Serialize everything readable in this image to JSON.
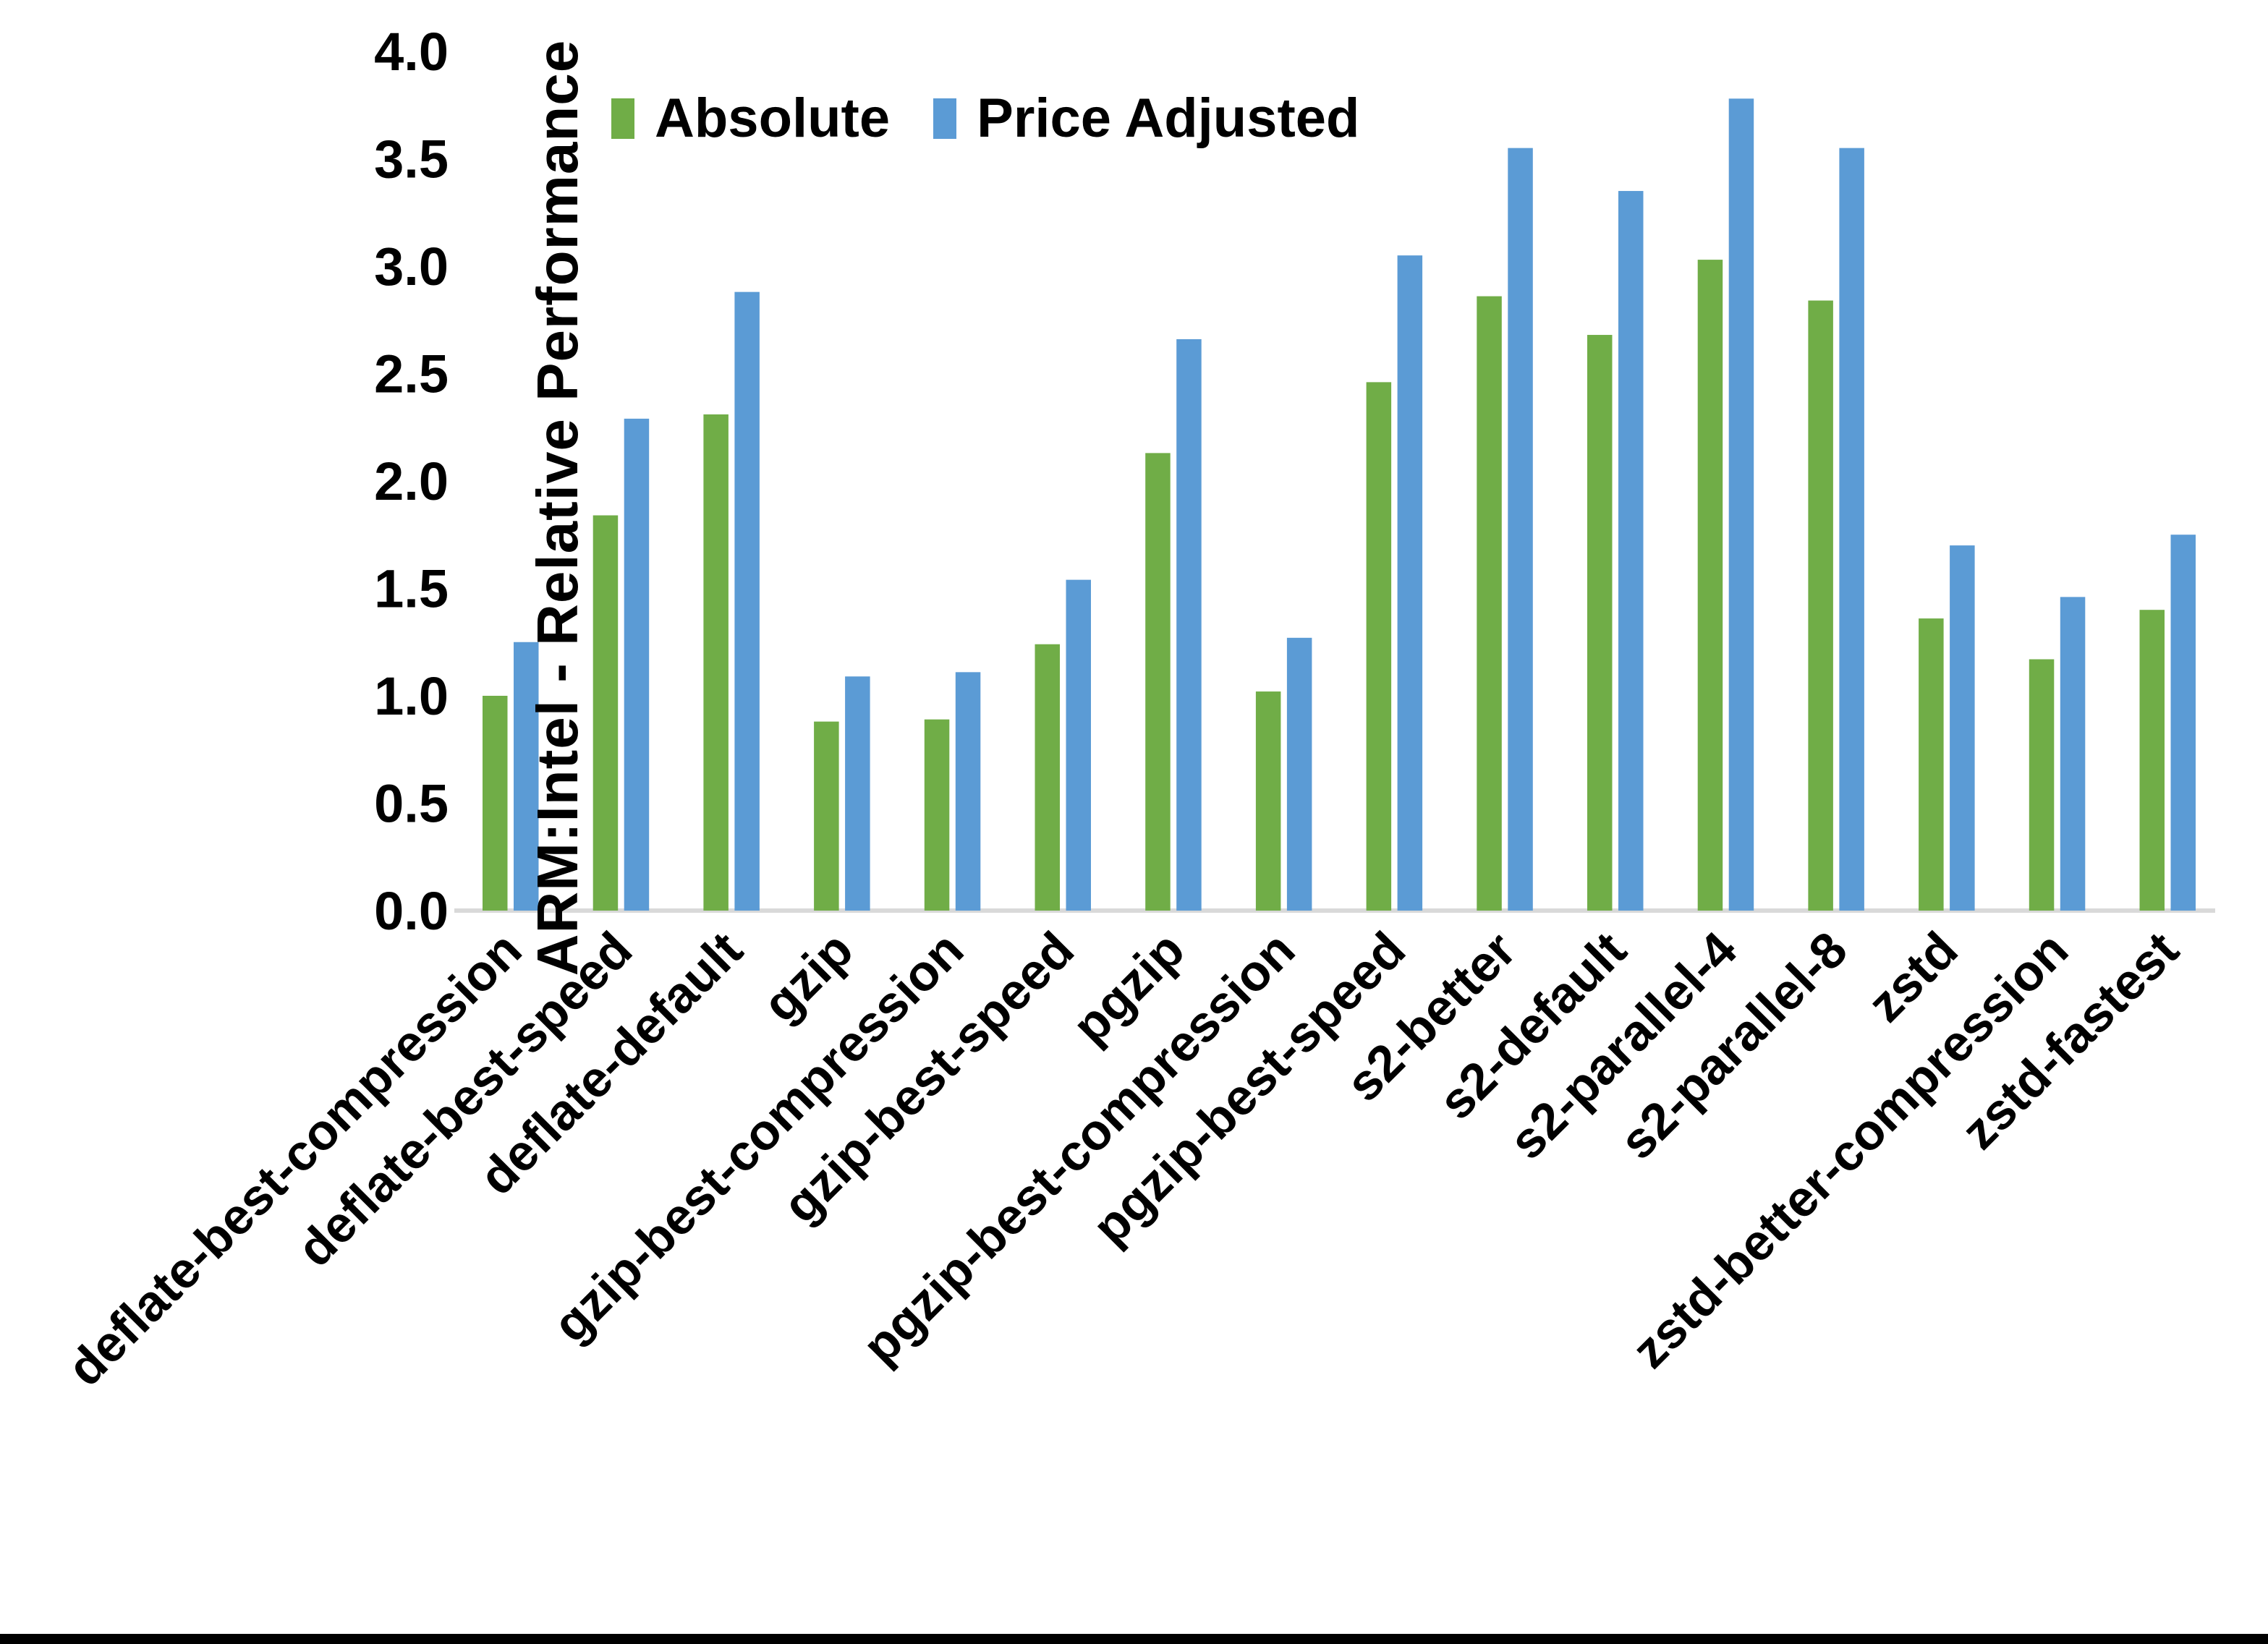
{
  "figure": {
    "background_color": "#FFFFFF",
    "bottom_border_color": "#000000"
  },
  "chart_data": {
    "type": "bar",
    "title": "",
    "xlabel": "",
    "ylabel": "ARM:Intel - Relative Performance",
    "ylim": [
      0.0,
      4.0
    ],
    "ytick_step": 0.5,
    "ytick_labels": [
      "0.0",
      "0.5",
      "1.0",
      "1.5",
      "2.0",
      "2.5",
      "3.0",
      "3.5",
      "4.0"
    ],
    "grid": false,
    "legend_position": "top-center",
    "axis_line_color": "#D9D9D9",
    "text_color": "#000000",
    "categories": [
      "deflate-best-compression",
      "deflate-best-speed",
      "deflate-default",
      "gzip",
      "gzip-best-compression",
      "gzip-best-speed",
      "pgzip",
      "pgzip-best-compression",
      "pgzip-best-speed",
      "s2-better",
      "s2-default",
      "s2-parallel-4",
      "s2-parallel-8",
      "zstd",
      "zstd-better-compression",
      "zstd-fastest"
    ],
    "series": [
      {
        "name": "Absolute",
        "color": "#70AD47",
        "values": [
          1.0,
          1.84,
          2.31,
          0.88,
          0.89,
          1.24,
          2.13,
          1.02,
          2.46,
          2.86,
          2.68,
          3.03,
          2.84,
          1.36,
          1.17,
          1.4
        ]
      },
      {
        "name": "Price Adjusted",
        "color": "#5B9BD5",
        "values": [
          1.25,
          2.29,
          2.88,
          1.09,
          1.11,
          1.54,
          2.66,
          1.27,
          3.05,
          3.55,
          3.35,
          3.78,
          3.55,
          1.7,
          1.46,
          1.75
        ]
      }
    ]
  }
}
